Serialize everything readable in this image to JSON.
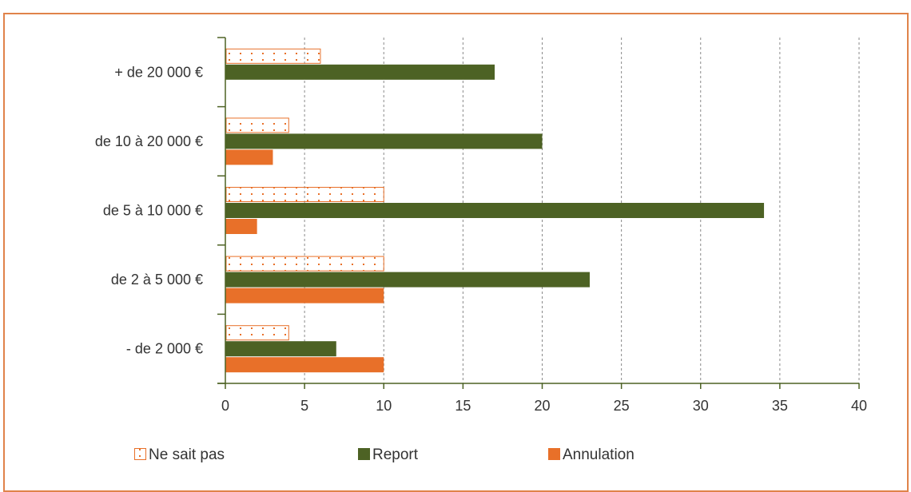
{
  "chart_data": {
    "type": "bar",
    "orientation": "horizontal",
    "categories": [
      "+ de 20 000 €",
      "de 10 à 20 000 €",
      "de 5 à 10 000 €",
      "de 2 à 5 000 €",
      "- de 2 000 €"
    ],
    "series": [
      {
        "name": "Ne sait pas",
        "values": [
          6,
          4,
          10,
          10,
          4
        ],
        "color": "#e87029",
        "pattern": "dotted-outline"
      },
      {
        "name": "Report",
        "values": [
          17,
          20,
          34,
          23,
          7
        ],
        "color": "#4d6224",
        "pattern": "solid"
      },
      {
        "name": "Annulation",
        "values": [
          0,
          3,
          2,
          10,
          10
        ],
        "color": "#e87029",
        "pattern": "solid"
      }
    ],
    "x_ticks": [
      "0",
      "5",
      "10",
      "15",
      "20",
      "25",
      "30",
      "35",
      "40"
    ],
    "xlim": [
      0,
      40
    ],
    "grid": "vertical dashed",
    "legend_position": "bottom"
  },
  "colors": {
    "frame": "#e0834a",
    "axis": "#4d6224",
    "grid": "#8a8a8a",
    "text": "#333333"
  }
}
